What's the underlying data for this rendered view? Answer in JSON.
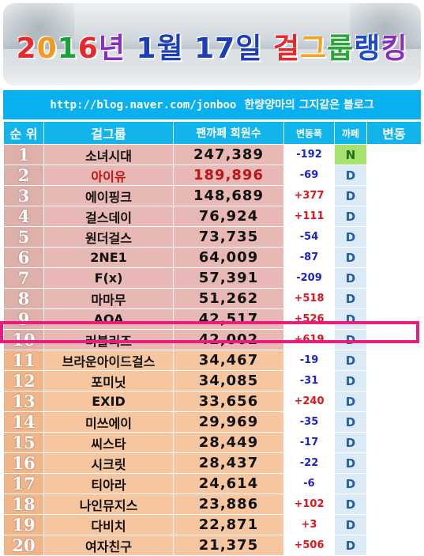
{
  "header": {
    "title_parts": [
      {
        "text": "2",
        "color": "#e8282d"
      },
      {
        "text": "0",
        "color": "#f39a1e"
      },
      {
        "text": "1",
        "color": "#1aa23a"
      },
      {
        "text": "6",
        "color": "#e8282d"
      },
      {
        "text": "년 ",
        "color": "#8b2cc0"
      },
      {
        "text": "1월 17일 ",
        "color": "#1c3fb8"
      },
      {
        "text": "걸",
        "color": "#e8282d"
      },
      {
        "text": "그",
        "color": "#f7a11a"
      },
      {
        "text": "룹",
        "color": "#2aa63a"
      },
      {
        "text": "랭",
        "color": "#1c4cc8"
      },
      {
        "text": "킹",
        "color": "#8b2cc0"
      }
    ]
  },
  "blog_bar": {
    "url": "http://blog.naver.com/jonboo",
    "owner": "한량양마의 그지같은 블로그"
  },
  "table": {
    "columns": {
      "rank": "순 위",
      "name": "걸그룹",
      "fans": "팬까페 회원수",
      "change": "변동폭",
      "cafe": "까페",
      "variation": "변동"
    },
    "rows": [
      {
        "rank": "1",
        "name": "소녀시대",
        "fans": "247,389",
        "change": "-192",
        "cafe": "N"
      },
      {
        "rank": "2",
        "name": "아이유",
        "fans": "189,896",
        "change": "-69",
        "cafe": "D"
      },
      {
        "rank": "3",
        "name": "에이핑크",
        "fans": "148,689",
        "change": "+377",
        "cafe": "D"
      },
      {
        "rank": "4",
        "name": "걸스데이",
        "fans": "76,924",
        "change": "+111",
        "cafe": "D"
      },
      {
        "rank": "5",
        "name": "원더걸스",
        "fans": "73,735",
        "change": "-54",
        "cafe": "D"
      },
      {
        "rank": "6",
        "name": "2NE1",
        "fans": "64,009",
        "change": "-87",
        "cafe": "D"
      },
      {
        "rank": "7",
        "name": "F(x)",
        "fans": "57,391",
        "change": "-209",
        "cafe": "D"
      },
      {
        "rank": "8",
        "name": "마마무",
        "fans": "51,262",
        "change": "+518",
        "cafe": "D"
      },
      {
        "rank": "9",
        "name": "AOA",
        "fans": "42,517",
        "change": "+526",
        "cafe": "D"
      },
      {
        "rank": "10",
        "name": "러블리즈",
        "fans": "42,002",
        "change": "+619",
        "cafe": "D"
      },
      {
        "rank": "11",
        "name": "브라운아이드걸스",
        "fans": "34,467",
        "change": "-19",
        "cafe": "D"
      },
      {
        "rank": "12",
        "name": "포미닛",
        "fans": "34,085",
        "change": "-31",
        "cafe": "D"
      },
      {
        "rank": "13",
        "name": "EXID",
        "fans": "33,656",
        "change": "+240",
        "cafe": "D"
      },
      {
        "rank": "14",
        "name": "미쓰에이",
        "fans": "29,969",
        "change": "-35",
        "cafe": "D"
      },
      {
        "rank": "15",
        "name": "씨스타",
        "fans": "28,449",
        "change": "-17",
        "cafe": "D"
      },
      {
        "rank": "16",
        "name": "시크릿",
        "fans": "28,437",
        "change": "-22",
        "cafe": "D"
      },
      {
        "rank": "17",
        "name": "티아라",
        "fans": "24,614",
        "change": "-6",
        "cafe": "D"
      },
      {
        "rank": "18",
        "name": "나인뮤지스",
        "fans": "23,886",
        "change": "+102",
        "cafe": "D"
      },
      {
        "rank": "19",
        "name": "다비치",
        "fans": "22,871",
        "change": "+3",
        "cafe": "D"
      },
      {
        "rank": "20",
        "name": "여자친구",
        "fans": "21,375",
        "change": "+506",
        "cafe": "D"
      }
    ],
    "highlighted_rank": "10"
  },
  "colors": {
    "header_blue": "#12b4ec",
    "pink_rows": "#e8b8b4",
    "orange_rows": "#f5c6a0",
    "negative": "#1a24c8",
    "positive": "#e0141c",
    "highlight_border": "#ea1c7d",
    "cafe_n": "#a5e36e",
    "cafe_d": "#ddebf6"
  }
}
